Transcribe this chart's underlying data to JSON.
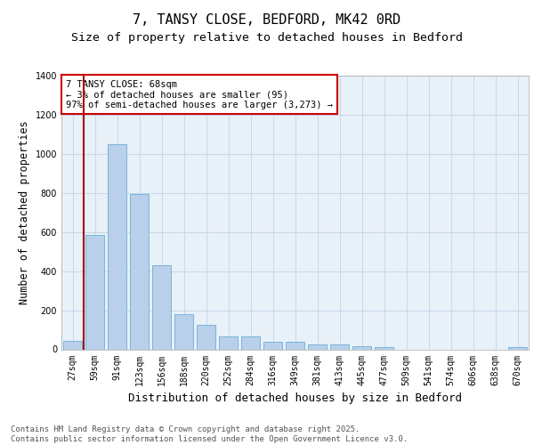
{
  "title1": "7, TANSY CLOSE, BEDFORD, MK42 0RD",
  "title2": "Size of property relative to detached houses in Bedford",
  "xlabel": "Distribution of detached houses by size in Bedford",
  "ylabel": "Number of detached properties",
  "categories": [
    "27sqm",
    "59sqm",
    "91sqm",
    "123sqm",
    "156sqm",
    "188sqm",
    "220sqm",
    "252sqm",
    "284sqm",
    "316sqm",
    "349sqm",
    "381sqm",
    "413sqm",
    "445sqm",
    "477sqm",
    "509sqm",
    "541sqm",
    "574sqm",
    "606sqm",
    "638sqm",
    "670sqm"
  ],
  "values": [
    45,
    585,
    1048,
    795,
    430,
    178,
    125,
    65,
    65,
    40,
    40,
    25,
    25,
    18,
    10,
    0,
    0,
    0,
    0,
    0,
    10
  ],
  "bar_color": "#b8d0ea",
  "bar_edge_color": "#6aaed6",
  "bg_color": "#e8f0f8",
  "grid_color": "#d0d8e8",
  "vline_color": "#aa0000",
  "annotation_text": "7 TANSY CLOSE: 68sqm\n← 3% of detached houses are smaller (95)\n97% of semi-detached houses are larger (3,273) →",
  "annotation_box_color": "#cc0000",
  "ylim": [
    0,
    1400
  ],
  "yticks": [
    0,
    200,
    400,
    600,
    800,
    1000,
    1200,
    1400
  ],
  "footer": "Contains HM Land Registry data © Crown copyright and database right 2025.\nContains public sector information licensed under the Open Government Licence v3.0.",
  "title_fontsize": 11,
  "subtitle_fontsize": 9.5,
  "axis_label_fontsize": 8.5,
  "xlabel_fontsize": 9,
  "tick_fontsize": 7,
  "annotation_fontsize": 7.5,
  "footer_fontsize": 6.5
}
